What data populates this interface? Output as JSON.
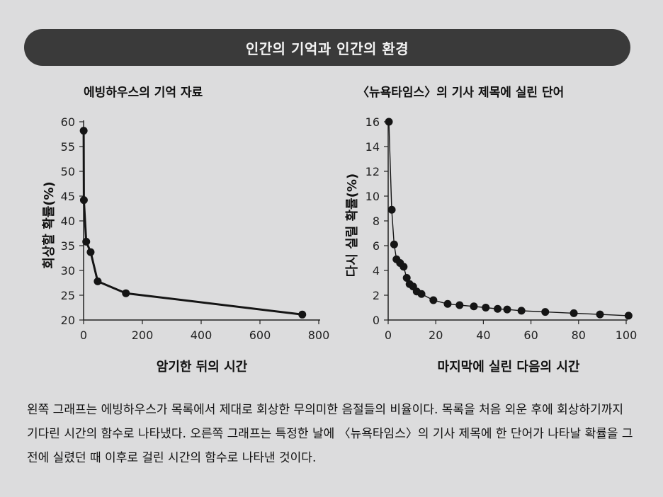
{
  "banner": {
    "title": "인간의 기억과 인간의 환경"
  },
  "chart_data": [
    {
      "type": "line",
      "title": "에빙하우스의 기억 자료",
      "xlabel": "암기한 뒤의 시간",
      "ylabel": "회상할 확률(%)",
      "xlim": [
        0,
        800
      ],
      "ylim": [
        20,
        60
      ],
      "xticks": [
        0,
        200,
        400,
        600,
        800
      ],
      "yticks": [
        20,
        25,
        30,
        35,
        40,
        45,
        50,
        55,
        60
      ],
      "series": [
        {
          "name": "회상할 확률",
          "x": [
            0.33,
            1,
            9,
            24,
            48,
            144,
            744
          ],
          "y": [
            58.2,
            44.2,
            35.8,
            33.7,
            27.8,
            25.4,
            21.1
          ]
        }
      ],
      "grid": false
    },
    {
      "type": "line",
      "title": "〈뉴욕타임스〉의 기사 제목에 실린 단어",
      "xlabel": "마지막에 실린 다음의 시간",
      "ylabel": "다시 실릴 확률(%)",
      "xlim": [
        0,
        100
      ],
      "ylim": [
        0,
        16
      ],
      "xticks": [
        0,
        20,
        40,
        60,
        80,
        100
      ],
      "yticks": [
        0,
        2,
        4,
        6,
        8,
        10,
        12,
        14,
        16
      ],
      "series": [
        {
          "name": "다시 실릴 확률",
          "x": [
            0.3,
            1.5,
            2.5,
            3.5,
            5,
            6.5,
            7.8,
            9,
            10.5,
            12,
            14,
            19,
            25,
            30,
            36,
            41,
            46,
            50,
            56,
            66,
            78,
            89,
            101
          ],
          "y": [
            16,
            8.9,
            6.1,
            4.9,
            4.6,
            4.3,
            3.4,
            2.9,
            2.7,
            2.3,
            2.1,
            1.6,
            1.3,
            1.2,
            1.1,
            1.0,
            0.9,
            0.85,
            0.75,
            0.65,
            0.55,
            0.45,
            0.35
          ]
        }
      ],
      "grid": false
    }
  ],
  "caption": "왼쪽 그래프는 에빙하우스가 목록에서 제대로 회상한 무의미한 음절들의 비율이다. 목록을 처음 외운 후에 회상하기까지 기다린 시간의 함수로 나타냈다. 오른쪽 그래프는 특정한 날에 〈뉴욕타임스〉의 기사 제목에 한 단어가 나타날 확률을 그 전에 실렸던 때 이후로 걸린 시간의 함수로 나타낸 것이다."
}
